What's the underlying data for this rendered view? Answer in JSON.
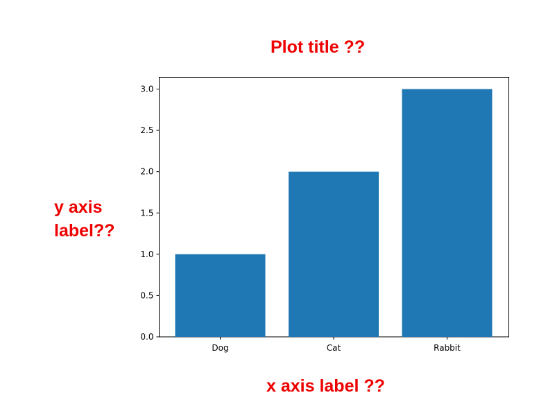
{
  "annotations": {
    "title": "Plot title ??",
    "xlabel": "x axis label ??",
    "ylabel_lines": [
      "y axis",
      "label??"
    ]
  },
  "chart_data": {
    "type": "bar",
    "categories": [
      "Dog",
      "Cat",
      "Rabbit"
    ],
    "values": [
      1,
      2,
      3
    ],
    "ylim": [
      0,
      3.15
    ],
    "yticks": [
      0.0,
      0.5,
      1.0,
      1.5,
      2.0,
      2.5,
      3.0
    ],
    "bar_color": "#1f77b4",
    "grid": false,
    "legend": "none"
  }
}
